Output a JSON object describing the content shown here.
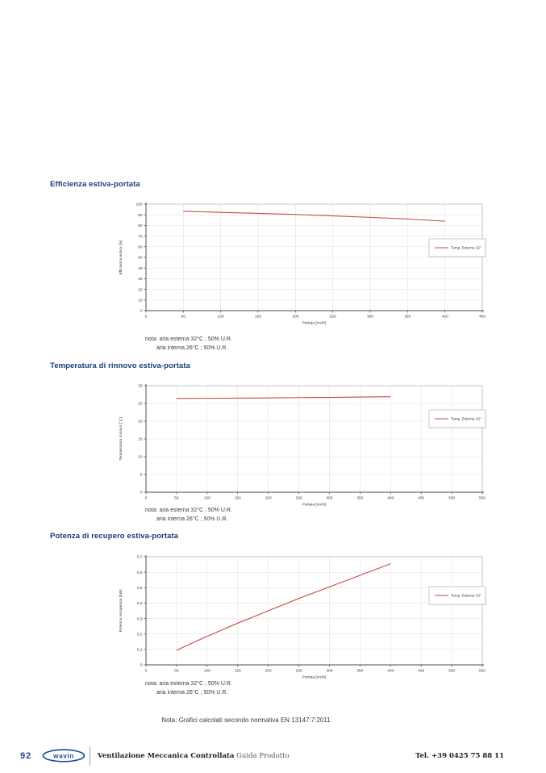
{
  "colors": {
    "title_blue": "#173d7a",
    "line_red": "#c94a44",
    "grid": "#e3e3e3",
    "frame": "#b5b5b5",
    "axis": "#4d4d4d",
    "tick_text": "#3a3a3a",
    "footer_blue": "#1b4796"
  },
  "sections": [
    {
      "title": "Efficienza estiva-portata",
      "note_line1": "nota: aria esterna 32°C ; 50% U.R.",
      "note_line2": "aria interna 26°C ; 50% U.R."
    },
    {
      "title": "Temperatura di rinnovo estiva-portata",
      "note_line1": "nota: aria esterna 32°C ; 50% U.R.",
      "note_line2": "aria interna 26°C ; 50% U.R."
    },
    {
      "title": "Potenza di recupero estiva-portata",
      "note_line1": "nota: aria esterna 32°C ; 50% U.R.",
      "note_line2": "aria interna 26°C ; 50% U.R."
    }
  ],
  "bottom_note": "Nota: Grafici calcolati secondo normativa EN 13147:7:2011",
  "footer": {
    "page_number": "92",
    "logo_text": "wavin",
    "booklet_bold": "Ventilazione Meccanica Controllata",
    "booklet_regular": "Guida Prodotto",
    "phone": "Tel. +39 0425 75 88 11"
  },
  "chart_data": [
    {
      "type": "line",
      "title": "Efficienza estiva-portata",
      "xlabel": "Portata [mc/h]",
      "ylabel": "Efficienza estiva [%]",
      "xlim": [
        0,
        450
      ],
      "ylim": [
        0,
        100
      ],
      "xtick_values": [
        0,
        50,
        100,
        150,
        200,
        250,
        300,
        350,
        400,
        450
      ],
      "xtick_labels": [
        "0",
        "50",
        "100",
        "150",
        "200",
        "250",
        "300",
        "350",
        "400",
        "450"
      ],
      "ytick_values": [
        0,
        10,
        20,
        30,
        40,
        50,
        60,
        70,
        80,
        90,
        100
      ],
      "ytick_labels": [
        "0",
        "10",
        "20",
        "30",
        "40",
        "50",
        "60",
        "70",
        "80",
        "90",
        "100"
      ],
      "grid": true,
      "legend_position": "right-middle",
      "series": [
        {
          "name": "Temp. Esterna 32°",
          "color": "#c94a44",
          "x": [
            50,
            100,
            150,
            200,
            250,
            300,
            350,
            400
          ],
          "y": [
            93.3,
            92.3,
            91.3,
            90.3,
            89.0,
            87.6,
            86.0,
            84.0
          ]
        }
      ]
    },
    {
      "type": "line",
      "title": "Temperatura di rinnovo estiva-portata",
      "xlabel": "Portata [mc/h]",
      "ylabel": "Temperatura rinnovo [°C]",
      "xlim": [
        0,
        550
      ],
      "ylim": [
        0,
        30
      ],
      "xtick_values": [
        0,
        50,
        100,
        150,
        200,
        250,
        300,
        350,
        400,
        450,
        500,
        550
      ],
      "xtick_labels": [
        "0",
        "50",
        "100",
        "150",
        "200",
        "250",
        "300",
        "350",
        "400",
        "450",
        "500",
        "550"
      ],
      "ytick_values": [
        0,
        5,
        10,
        15,
        20,
        25,
        30
      ],
      "ytick_labels": [
        "0",
        "5",
        "10",
        "15",
        "20",
        "25",
        "30"
      ],
      "grid": true,
      "legend_position": "right-middle",
      "series": [
        {
          "name": "Temp. Esterna 32°",
          "color": "#c94a44",
          "x": [
            50,
            100,
            150,
            200,
            250,
            300,
            350,
            400
          ],
          "y": [
            26.4,
            26.45,
            26.5,
            26.55,
            26.65,
            26.7,
            26.8,
            26.9
          ]
        }
      ]
    },
    {
      "type": "line",
      "title": "Potenza di recupero estiva-portata",
      "xlabel": "Portata [mc/h]",
      "ylabel": "Potenza recuperata [kW]",
      "xlim": [
        0,
        550
      ],
      "ylim": [
        0,
        0.7
      ],
      "xtick_values": [
        0,
        50,
        100,
        150,
        200,
        250,
        300,
        350,
        400,
        450,
        500,
        550
      ],
      "xtick_labels": [
        "0",
        "50",
        "100",
        "150",
        "200",
        "250",
        "300",
        "350",
        "400",
        "450",
        "500",
        "550"
      ],
      "ytick_values": [
        0,
        0.1,
        0.2,
        0.3,
        0.4,
        0.5,
        0.6,
        0.7
      ],
      "ytick_labels": [
        "0",
        "0,1",
        "0,2",
        "0,3",
        "0,4",
        "0,5",
        "0,6",
        "0,7"
      ],
      "grid": true,
      "legend_position": "right-middle",
      "series": [
        {
          "name": "Temp. Esterna 32°",
          "color": "#c94a44",
          "x": [
            50,
            100,
            150,
            200,
            250,
            300,
            350,
            400
          ],
          "y": [
            0.095,
            0.185,
            0.27,
            0.35,
            0.43,
            0.505,
            0.58,
            0.655
          ]
        }
      ]
    }
  ]
}
